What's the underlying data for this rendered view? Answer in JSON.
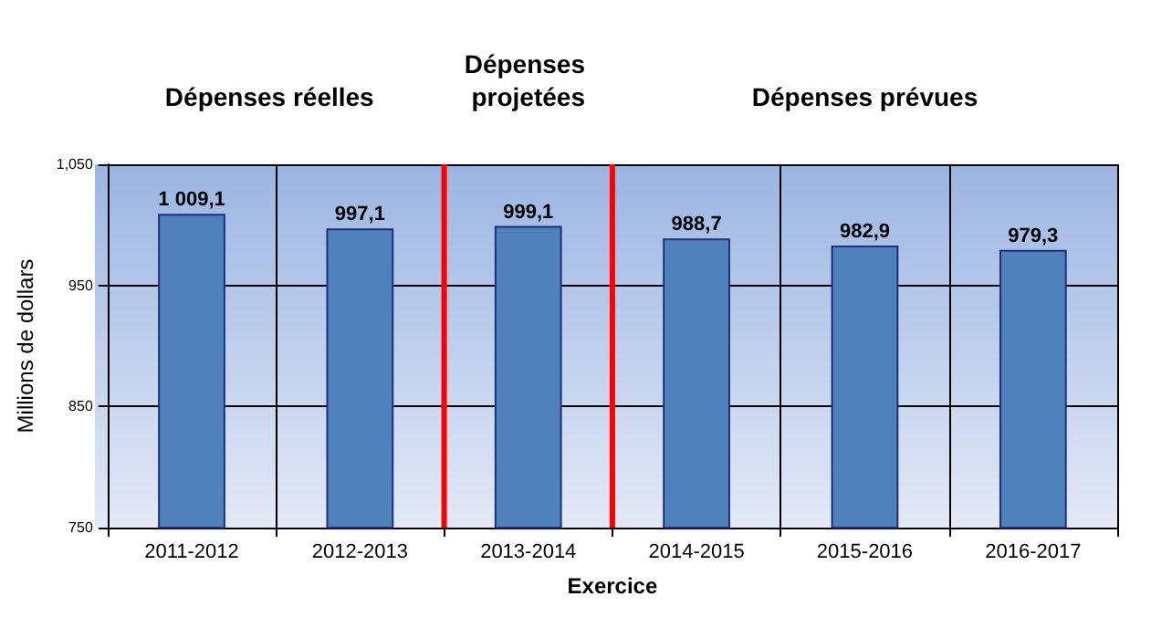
{
  "chart_data": {
    "type": "bar",
    "xlabel": "Exercice",
    "ylabel": "Millions de dollars",
    "categories": [
      "2011-2012",
      "2012-2013",
      "2013-2014",
      "2014-2015",
      "2015-2016",
      "2016-2017"
    ],
    "values": [
      1009.1,
      997.1,
      999.1,
      988.7,
      982.9,
      979.3
    ],
    "value_labels": [
      "1 009,1",
      "997,1",
      "999,1",
      "988,7",
      "982,9",
      "979,3"
    ],
    "color": "#4f81bd",
    "ylim": [
      750,
      1050
    ],
    "yticks": [
      750,
      850,
      950,
      {
        "value": 1050,
        "label": "1,050"
      }
    ],
    "grid": true,
    "annotations": [
      "Dépenses réelles",
      "Dépenses projetées",
      "Dépenses prévues"
    ]
  }
}
